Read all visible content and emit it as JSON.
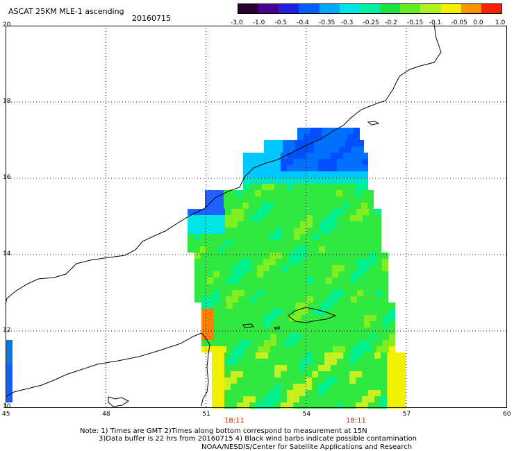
{
  "header": {
    "title": "ASCAT 25KM MLE-1 ascending",
    "date": "20160715"
  },
  "colorbar": {
    "labels": [
      "-3.0",
      "-1.0",
      "-0.5",
      "-0.4",
      "-0.35",
      "-0.3",
      "-0.25",
      "-0.2",
      "-0.15",
      "-0.1",
      "-0.05",
      "0.0",
      "1.0"
    ],
    "colors": [
      "#2a0030",
      "#4a0090",
      "#2020e0",
      "#0060ff",
      "#00a8ff",
      "#00e6e6",
      "#00f0a0",
      "#20e040",
      "#60ee20",
      "#b0f020",
      "#f0f000",
      "#ff9000",
      "#ff2000"
    ]
  },
  "axes": {
    "x_ticks": [
      "45",
      "48",
      "51",
      "54",
      "57",
      "60"
    ],
    "y_ticks": [
      "20",
      "18",
      "16",
      "14",
      "12",
      "10"
    ]
  },
  "pass_times": [
    "18:11",
    "18:11"
  ],
  "notes": {
    "line1": "Note: 1) Times are GMT 2)Times along bottom correspond to measurement at 15N",
    "line2": "3)Data buffer is 22 hrs from 20160715 4) Black wind barbs indicate possible contamination",
    "line3": "NOAA/NESDIS/Center for Satellite Applications and Research"
  }
}
